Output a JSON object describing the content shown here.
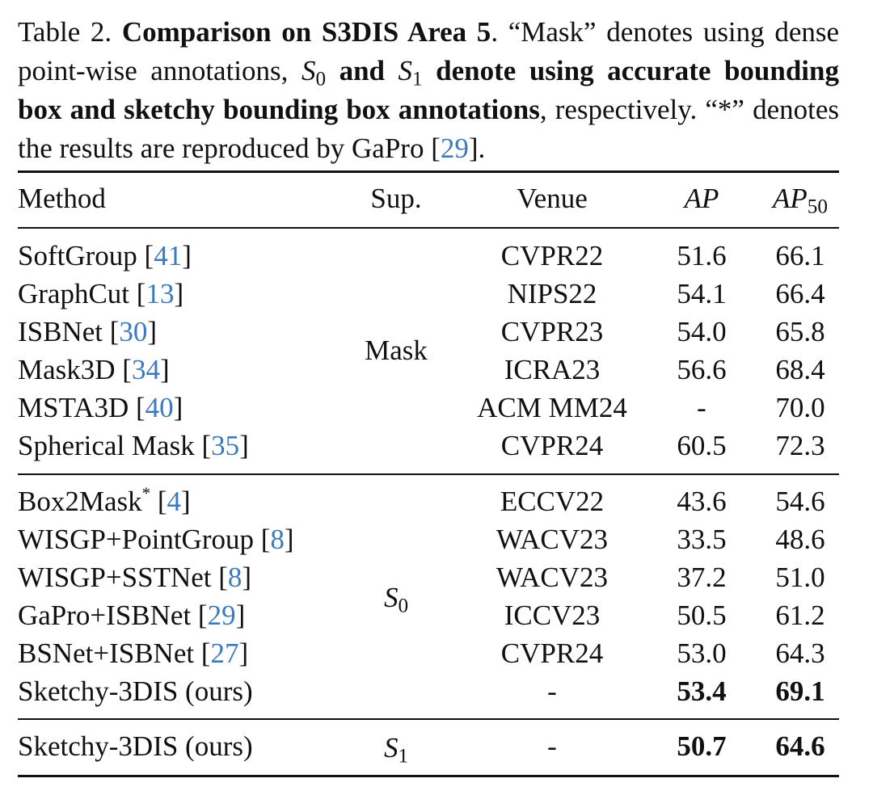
{
  "caption": {
    "table_label": "Table 2.",
    "title": "Comparison on S3DIS Area 5",
    "text_a": ". “Mask” denotes using dense point-wise annotations, ",
    "s0_sym": "S",
    "s0_sub": "0",
    "and_text": " and ",
    "s1_sym": "S",
    "s1_sub": "1",
    "bold_rest": " denote using accurate bounding box and sketchy bounding box annotations",
    "text_b": ", respectively. “*” denotes the results are reproduced by GaPro [",
    "gapro_ref": "29",
    "text_c": "]."
  },
  "header": {
    "method": "Method",
    "sup": "Sup.",
    "venue": "Venue",
    "ap": "AP",
    "ap50_base": "AP",
    "ap50_sub": "50"
  },
  "groups": {
    "mask": "Mask",
    "s0_sym": "S",
    "s0_sub": "0",
    "s1_sym": "S",
    "s1_sub": "1"
  },
  "rows": [
    {
      "name": "SoftGroup [",
      "ref": "41",
      "close": "]",
      "venue": "CVPR22",
      "ap": "51.6",
      "ap50": "66.1"
    },
    {
      "name": "GraphCut [",
      "ref": "13",
      "close": "]",
      "venue": "NIPS22",
      "ap": "54.1",
      "ap50": "66.4"
    },
    {
      "name": "ISBNet [",
      "ref": "30",
      "close": "]",
      "venue": "CVPR23",
      "ap": "54.0",
      "ap50": "65.8"
    },
    {
      "name": "Mask3D [",
      "ref": "34",
      "close": "]",
      "venue": "ICRA23",
      "ap": "56.6",
      "ap50": "68.4"
    },
    {
      "name": "MSTA3D [",
      "ref": "40",
      "close": "]",
      "venue": "ACM MM24",
      "ap": "-",
      "ap50": "70.0"
    },
    {
      "name": "Spherical Mask [",
      "ref": "35",
      "close": "]",
      "venue": "CVPR24",
      "ap": "60.5",
      "ap50": "72.3"
    },
    {
      "name": "Box2Mask",
      "star": "*",
      "name2": " [",
      "ref": "4",
      "close": "]",
      "venue": "ECCV22",
      "ap": "43.6",
      "ap50": "54.6"
    },
    {
      "name": "WISGP+PointGroup [",
      "ref": "8",
      "close": "]",
      "venue": "WACV23",
      "ap": "33.5",
      "ap50": "48.6"
    },
    {
      "name": "WISGP+SSTNet [",
      "ref": "8",
      "close": "]",
      "venue": "WACV23",
      "ap": "37.2",
      "ap50": "51.0"
    },
    {
      "name": "GaPro+ISBNet [",
      "ref": "29",
      "close": "]",
      "venue": "ICCV23",
      "ap": "50.5",
      "ap50": "61.2"
    },
    {
      "name": "BSNet+ISBNet [",
      "ref": "27",
      "close": "]",
      "venue": "CVPR24",
      "ap": "53.0",
      "ap50": "64.3"
    },
    {
      "name": "Sketchy-3DIS (ours)",
      "venue": "-",
      "ap": "53.4",
      "ap50": "69.1"
    },
    {
      "name": "Sketchy-3DIS (ours)",
      "venue": "-",
      "ap": "50.7",
      "ap50": "64.6"
    }
  ]
}
